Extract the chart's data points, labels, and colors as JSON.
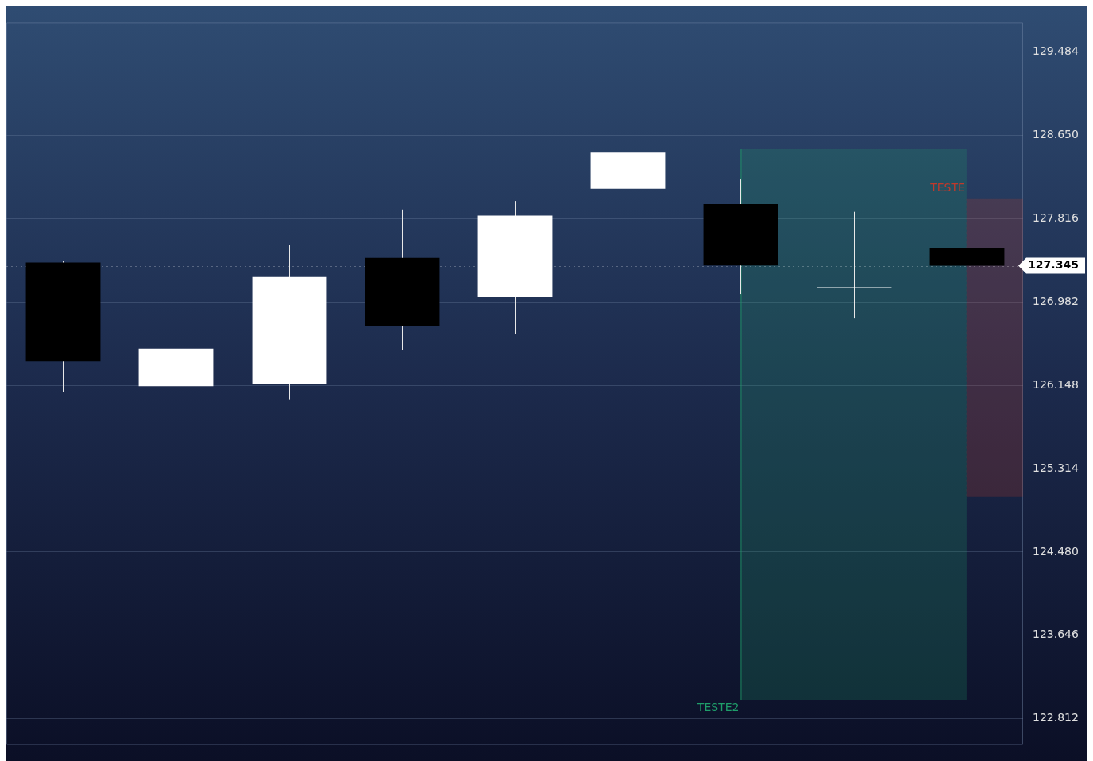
{
  "chart_data": {
    "type": "candlestick",
    "categories": [
      null,
      null,
      null,
      null,
      null,
      null,
      null,
      null,
      null
    ],
    "ohlc": [
      [
        127.378,
        127.393,
        126.079,
        126.386
      ],
      [
        126.14,
        126.678,
        125.525,
        126.517
      ],
      [
        126.163,
        127.555,
        126.009,
        127.232
      ],
      [
        127.424,
        127.908,
        126.501,
        126.74
      ],
      [
        127.032,
        127.993,
        126.663,
        127.847
      ],
      [
        128.116,
        128.669,
        127.109,
        128.485
      ],
      [
        127.962,
        128.216,
        127.063,
        127.347
      ],
      [
        127.132,
        127.885,
        126.824,
        127.132
      ],
      [
        127.524,
        127.908,
        127.101,
        127.345
      ]
    ],
    "colors": [
      "#000000",
      "#ffffff",
      "#ffffff",
      "#000000",
      "#ffffff",
      "#ffffff",
      "#000000",
      "#ffffff",
      "#000000"
    ],
    "ylim": [
      122.55,
      129.78
    ],
    "yticks": [
      122.812,
      123.646,
      {
        "value": 124.48,
        "label": "124.480"
      },
      125.314,
      126.148,
      126.982,
      127.816,
      {
        "value": 128.65,
        "label": "128.650"
      },
      129.484
    ],
    "tick_labels": "y",
    "grid": "y",
    "ref_lines": [
      {
        "axis": "y",
        "value": 127.345,
        "label": "127.345",
        "color": "#ffffff"
      }
    ],
    "bands": [
      {
        "axis": "y",
        "from": 123.0,
        "to": 128.51,
        "label": "TESTE2",
        "color": "#1f9e6a"
      },
      {
        "axis": "y",
        "from": 125.03,
        "to": 128.02,
        "label": "TESTE",
        "color": "#c0392b"
      }
    ]
  }
}
